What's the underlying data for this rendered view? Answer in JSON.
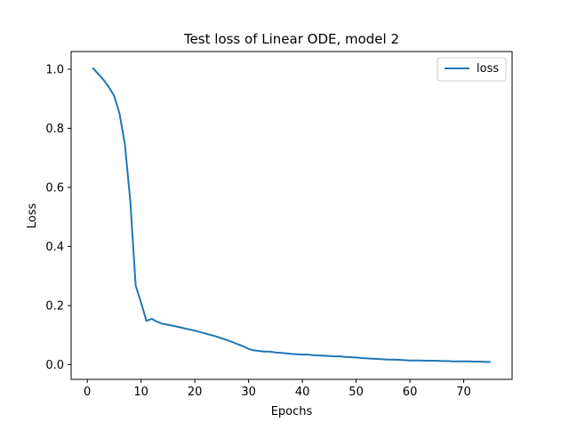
{
  "chart_data": {
    "type": "line",
    "title": "Test loss of Linear ODE, model 2",
    "xlabel": "Epochs",
    "ylabel": "Loss",
    "xlim": [
      -3,
      79
    ],
    "ylim": [
      -0.05,
      1.06
    ],
    "xticks": [
      0,
      10,
      20,
      30,
      40,
      50,
      60,
      70
    ],
    "yticks": [
      0.0,
      0.2,
      0.4,
      0.6,
      0.8,
      1.0
    ],
    "ytick_labels": [
      "0.0",
      "0.2",
      "0.4",
      "0.6",
      "0.8",
      "1.0"
    ],
    "grid": false,
    "legend": {
      "placement": "top-right",
      "entries": [
        "loss"
      ]
    },
    "series": [
      {
        "name": "loss",
        "color": "#1f77b4",
        "x": [
          1,
          2,
          3,
          4,
          5,
          6,
          7,
          8,
          9,
          10,
          11,
          12,
          13,
          14,
          15,
          16,
          17,
          18,
          19,
          20,
          21,
          22,
          23,
          24,
          25,
          26,
          27,
          28,
          29,
          30,
          31,
          32,
          33,
          34,
          35,
          36,
          37,
          38,
          39,
          40,
          41,
          42,
          43,
          44,
          45,
          46,
          47,
          48,
          49,
          50,
          51,
          52,
          53,
          54,
          55,
          56,
          57,
          58,
          59,
          60,
          61,
          62,
          63,
          64,
          65,
          66,
          67,
          68,
          69,
          70,
          71,
          72,
          73,
          74,
          75
        ],
        "values": [
          1.005,
          0.985,
          0.965,
          0.94,
          0.91,
          0.85,
          0.745,
          0.555,
          0.268,
          0.21,
          0.148,
          0.155,
          0.145,
          0.138,
          0.135,
          0.131,
          0.127,
          0.123,
          0.119,
          0.115,
          0.11,
          0.105,
          0.1,
          0.095,
          0.089,
          0.083,
          0.076,
          0.069,
          0.062,
          0.053,
          0.048,
          0.046,
          0.044,
          0.044,
          0.041,
          0.04,
          0.038,
          0.036,
          0.035,
          0.034,
          0.034,
          0.032,
          0.031,
          0.03,
          0.029,
          0.028,
          0.028,
          0.026,
          0.025,
          0.024,
          0.022,
          0.021,
          0.02,
          0.019,
          0.018,
          0.017,
          0.017,
          0.016,
          0.015,
          0.014,
          0.014,
          0.014,
          0.013,
          0.013,
          0.013,
          0.012,
          0.012,
          0.011,
          0.011,
          0.011,
          0.011,
          0.01,
          0.01,
          0.009,
          0.009
        ]
      }
    ]
  }
}
